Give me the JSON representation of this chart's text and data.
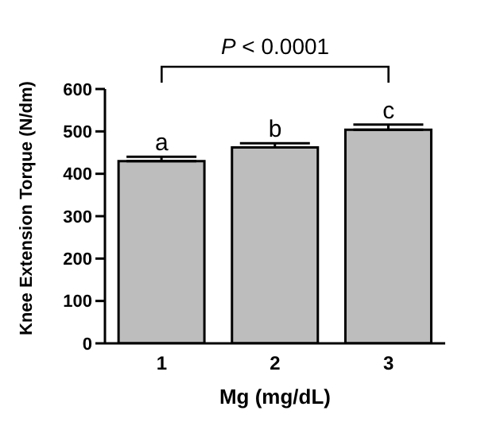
{
  "chart_data": {
    "type": "bar",
    "categories": [
      "1",
      "2",
      "3"
    ],
    "values": [
      430,
      462,
      504
    ],
    "errors": [
      10,
      10,
      12
    ],
    "color": "#bdbdbd",
    "xlabel": "Mg (mg/dL)",
    "ylabel": "Knee Extension Torque (N/dm)",
    "ylim": [
      0,
      600
    ],
    "yticks": [
      0,
      100,
      200,
      300,
      400,
      500,
      600
    ],
    "grid": false,
    "legend": false,
    "annotations": [
      {
        "text": "a",
        "x": "1",
        "y": 440
      },
      {
        "text": "b",
        "x": "2",
        "y": 472
      },
      {
        "text": "c",
        "x": "3",
        "y": 516
      },
      "P < 0.0001"
    ]
  }
}
